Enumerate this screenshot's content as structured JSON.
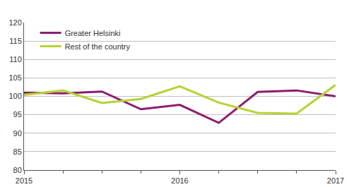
{
  "chart_data": {
    "type": "line",
    "categories": [
      "2015",
      null,
      null,
      null,
      "2016",
      null,
      null,
      null,
      "2017"
    ],
    "series": [
      {
        "name": "Greater Helsinki",
        "color": "#8c1d6e",
        "values": [
          101.0,
          100.8,
          101.3,
          96.5,
          97.7,
          92.8,
          101.2,
          101.6,
          100.0
        ]
      },
      {
        "name": "Rest of the country",
        "color": "#b5d334",
        "values": [
          100.4,
          101.6,
          98.2,
          99.3,
          102.7,
          98.3,
          95.5,
          95.3,
          103.1
        ]
      }
    ],
    "ylim": [
      80,
      120
    ],
    "yticks": [
      80,
      85,
      90,
      95,
      100,
      105,
      110,
      115,
      120
    ],
    "grid": true,
    "legend": "upper left"
  }
}
